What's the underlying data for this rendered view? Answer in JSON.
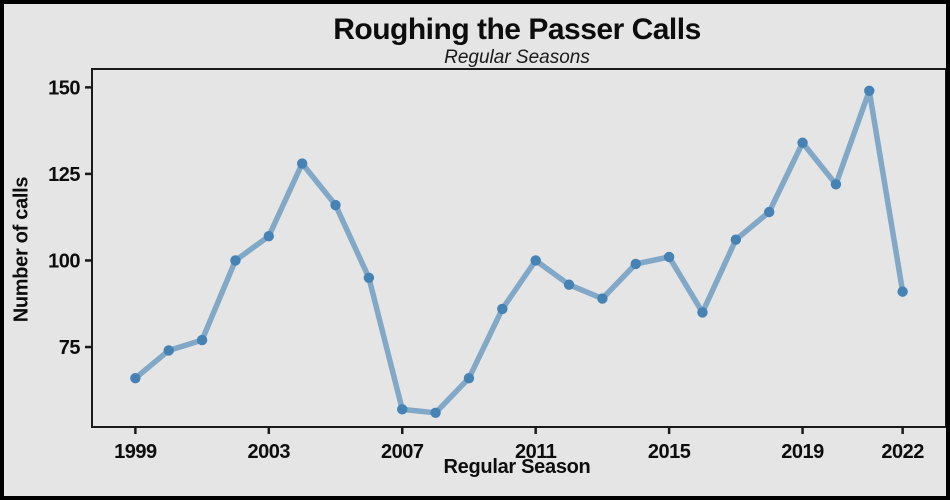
{
  "chart_data": {
    "type": "line",
    "title": "Roughing the Passer Calls",
    "subtitle": "Regular Seasons",
    "xlabel": "Regular Season",
    "ylabel": "Number of calls",
    "x": [
      1999,
      2000,
      2001,
      2002,
      2003,
      2004,
      2005,
      2006,
      2007,
      2008,
      2009,
      2010,
      2011,
      2012,
      2013,
      2014,
      2015,
      2016,
      2017,
      2018,
      2019,
      2020,
      2021,
      2022
    ],
    "series": [
      {
        "name": "Roughing the passer calls",
        "values": [
          66,
          74,
          77,
          100,
          107,
          128,
          116,
          95,
          57,
          56,
          66,
          86,
          100,
          93,
          89,
          99,
          101,
          85,
          106,
          114,
          134,
          122,
          149,
          91
        ]
      }
    ],
    "x_ticks": [
      1999,
      2003,
      2007,
      2011,
      2015,
      2019,
      2022
    ],
    "y_ticks": [
      75,
      100,
      125,
      150
    ],
    "x_domain": [
      1997.7,
      2023.3
    ],
    "y_domain": [
      51.9,
      155.3
    ],
    "grid": false,
    "legend": "none",
    "colors": {
      "line": "#4682b4",
      "line_alpha": 0.62,
      "point": "#4682b4",
      "background": "#e5e5e5",
      "frame": "#1a1a1a",
      "text": "#0d0d0d"
    }
  }
}
